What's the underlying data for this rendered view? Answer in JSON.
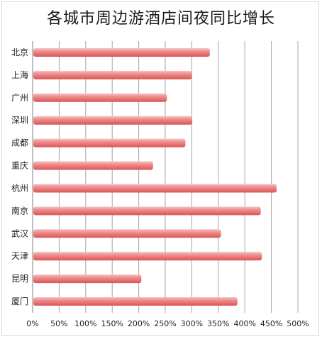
{
  "chart_data": {
    "type": "bar",
    "orientation": "horizontal",
    "title": "各城市周边游酒店间夜同比增长",
    "categories": [
      "北京",
      "上海",
      "广州",
      "深圳",
      "成都",
      "重庆",
      "杭州",
      "南京",
      "武汉",
      "天津",
      "昆明",
      "厦门"
    ],
    "values": [
      334,
      300,
      253,
      301,
      288,
      227,
      460,
      430,
      355,
      432,
      205,
      386
    ],
    "value_unit": "%",
    "xlim": [
      0,
      500
    ],
    "x_ticks": [
      "0%",
      "50%",
      "100%",
      "150%",
      "200%",
      "250%",
      "300%",
      "350%",
      "400%",
      "450%",
      "500%"
    ],
    "grid": "vertical",
    "legend": "none",
    "colors": {
      "bar": "#e46b6b",
      "bar_highlight": "#f6b8b8",
      "grid": "#a6a6a6"
    }
  }
}
